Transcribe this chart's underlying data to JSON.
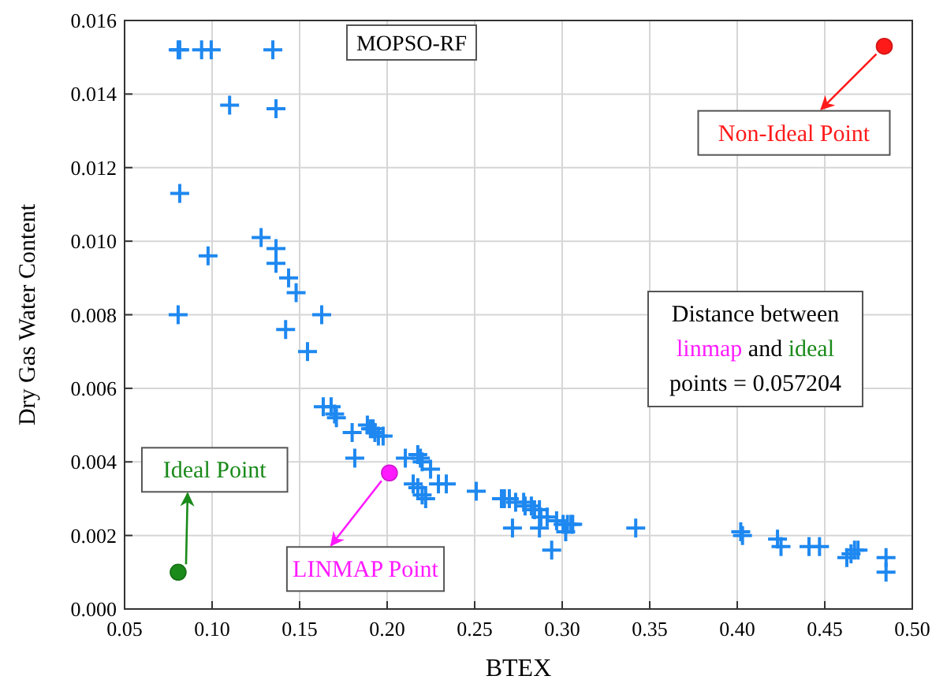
{
  "chart_data": {
    "type": "scatter",
    "xlabel": "BTEX",
    "ylabel": "Dry Gas Water Content",
    "xlim": [
      0.05,
      0.5
    ],
    "xticks": [
      {
        "value": 0.05,
        "label": "0.05"
      },
      {
        "value": 0.1,
        "label": "0.10"
      },
      {
        "value": 0.15,
        "label": "0.15"
      },
      {
        "value": 0.2,
        "label": "0.20"
      },
      {
        "value": 0.25,
        "label": "0.25"
      },
      {
        "value": 0.3,
        "label": "0.30"
      },
      {
        "value": 0.35,
        "label": "0.35"
      },
      {
        "value": 0.4,
        "label": "0.40"
      },
      {
        "value": 0.45,
        "label": "0.45"
      },
      {
        "value": 0.5,
        "label": "0.50"
      }
    ],
    "ylim": [
      0,
      0.016
    ],
    "yticks": [
      {
        "value": 0,
        "label": "0.000"
      },
      {
        "value": 0.002,
        "label": "0.002"
      },
      {
        "value": 0.004,
        "label": "0.004"
      },
      {
        "value": 0.006,
        "label": "0.006"
      },
      {
        "value": 0.008,
        "label": "0.008"
      },
      {
        "value": 0.01,
        "label": "0.010"
      },
      {
        "value": 0.012,
        "label": "0.012"
      },
      {
        "value": 0.014,
        "label": "0.014"
      },
      {
        "value": 0.016,
        "label": "0.016"
      }
    ],
    "grid": true,
    "series": [
      {
        "color": "#1e88f0",
        "marker": "cross",
        "x": [
          0.0806,
          0.0815,
          0.094,
          0.0995,
          0.1347,
          0.11,
          0.1365,
          0.0815,
          0.0977,
          0.128,
          0.1365,
          0.1365,
          0.1437,
          0.148,
          0.0806,
          0.1626,
          0.142,
          0.1545,
          0.1635,
          0.168,
          0.17,
          0.171,
          0.18,
          0.1815,
          0.1887,
          0.1905,
          0.192,
          0.193,
          0.195,
          0.1977,
          0.2104,
          0.2175,
          0.219,
          0.22,
          0.2248,
          0.2149,
          0.2175,
          0.22,
          0.222,
          0.2293,
          0.2338,
          0.2509,
          0.2653,
          0.267,
          0.2698,
          0.2734,
          0.278,
          0.2788,
          0.2824,
          0.2842,
          0.287,
          0.2878,
          0.2914,
          0.2968,
          0.3005,
          0.303,
          0.305,
          0.306,
          0.2716,
          0.287,
          0.294,
          0.302,
          0.342,
          0.402,
          0.403,
          0.423,
          0.425,
          0.441,
          0.447,
          0.4626,
          0.465,
          0.467,
          0.469,
          0.485,
          0.485
        ],
        "values": [
          0.0152,
          0.0152,
          0.0152,
          0.0152,
          0.0152,
          0.0137,
          0.0136,
          0.0113,
          0.0096,
          0.0101,
          0.0098,
          0.0094,
          0.009,
          0.0086,
          0.008,
          0.008,
          0.0076,
          0.007,
          0.0055,
          0.0055,
          0.0053,
          0.0052,
          0.0048,
          0.0041,
          0.005,
          0.0049,
          0.0049,
          0.0048,
          0.0047,
          0.0047,
          0.0041,
          0.0042,
          0.0041,
          0.004,
          0.0038,
          0.0034,
          0.0033,
          0.0031,
          0.003,
          0.0034,
          0.0034,
          0.0032,
          0.003,
          0.003,
          0.003,
          0.0029,
          0.0029,
          0.0028,
          0.0028,
          0.0027,
          0.0027,
          0.0025,
          0.0025,
          0.0024,
          0.0023,
          0.0023,
          0.0023,
          0.0023,
          0.0022,
          0.0022,
          0.0016,
          0.0021,
          0.0022,
          0.0021,
          0.002,
          0.0019,
          0.0017,
          0.0017,
          0.0017,
          0.0014,
          0.0015,
          0.0016,
          0.0016,
          0.0014,
          0.001
        ]
      },
      {
        "color": "#1a8a1a",
        "marker": "circle",
        "x": [
          0.0806
        ],
        "values": [
          0.001
        ]
      },
      {
        "color": "#ff1aff",
        "marker": "circle",
        "x": [
          0.2013
        ],
        "values": [
          0.0037
        ]
      },
      {
        "color": "#ff1a1a",
        "marker": "circle",
        "x": [
          0.484
        ],
        "values": [
          0.0153
        ]
      }
    ],
    "annotations": [
      {
        "text": "Ideal Point",
        "x": 0.0806,
        "y": 0.001
      },
      {
        "text": "LINMAP Point",
        "x": 0.2013,
        "y": 0.0037
      },
      {
        "text": "Non-Ideal Point",
        "x": 0.484,
        "y": 0.0153
      },
      "MOPSO-RF",
      "Distance between linmap and ideal points = 0.057204"
    ]
  }
}
